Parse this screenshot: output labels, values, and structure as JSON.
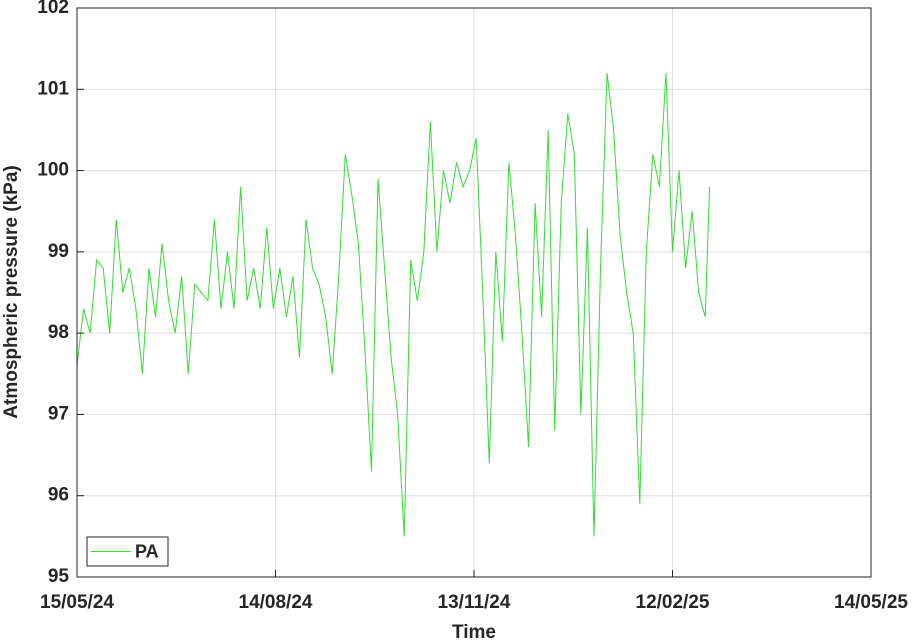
{
  "chart_data": {
    "type": "line",
    "x_label": "Time",
    "y_label": "Atmospheric pressure (kPa)",
    "x": [
      "15/05/24",
      "18/05/24",
      "21/05/24",
      "24/05/24",
      "27/05/24",
      "30/05/24",
      "02/06/24",
      "05/06/24",
      "08/06/24",
      "11/06/24",
      "14/06/24",
      "17/06/24",
      "20/06/24",
      "23/06/24",
      "26/06/24",
      "29/06/24",
      "02/07/24",
      "05/07/24",
      "08/07/24",
      "11/07/24",
      "14/07/24",
      "17/07/24",
      "20/07/24",
      "23/07/24",
      "26/07/24",
      "29/07/24",
      "01/08/24",
      "04/08/24",
      "07/08/24",
      "10/08/24",
      "13/08/24",
      "16/08/24",
      "19/08/24",
      "22/08/24",
      "25/08/24",
      "28/08/24",
      "31/08/24",
      "03/09/24",
      "06/09/24",
      "09/09/24",
      "12/09/24",
      "15/09/24",
      "18/09/24",
      "21/09/24",
      "24/09/24",
      "27/09/24",
      "30/09/24",
      "03/10/24",
      "06/10/24",
      "09/10/24",
      "12/10/24",
      "15/10/24",
      "18/10/24",
      "21/10/24",
      "24/10/24",
      "27/10/24",
      "30/10/24",
      "02/11/24",
      "05/11/24",
      "08/11/24",
      "11/11/24",
      "14/11/24",
      "17/11/24",
      "20/11/24",
      "23/11/24",
      "26/11/24",
      "29/11/24",
      "02/12/24",
      "05/12/24",
      "08/12/24",
      "11/12/24",
      "14/12/24",
      "17/12/24",
      "20/12/24",
      "23/12/24",
      "26/12/24",
      "29/12/24",
      "01/01/25",
      "04/01/25",
      "07/01/25",
      "10/01/25",
      "13/01/25",
      "16/01/25",
      "19/01/25",
      "22/01/25",
      "25/01/25",
      "28/01/25",
      "31/01/25",
      "03/02/25",
      "06/02/25",
      "09/02/25",
      "12/02/25",
      "15/02/25",
      "18/02/25",
      "21/02/25",
      "24/02/25",
      "27/02/25",
      "01/03/25"
    ],
    "series": [
      {
        "name": "PA",
        "color": "#33dd33",
        "values": [
          97.6,
          98.3,
          98.0,
          98.9,
          98.8,
          98.0,
          99.4,
          98.5,
          98.8,
          98.3,
          97.5,
          98.8,
          98.2,
          99.1,
          98.4,
          98.0,
          98.7,
          97.5,
          98.6,
          98.5,
          98.4,
          99.4,
          98.3,
          99.0,
          98.3,
          99.8,
          98.4,
          98.8,
          98.3,
          99.3,
          98.3,
          98.8,
          98.2,
          98.7,
          97.7,
          99.4,
          98.8,
          98.6,
          98.2,
          97.5,
          98.7,
          100.2,
          99.7,
          99.1,
          97.8,
          96.3,
          99.9,
          98.8,
          97.7,
          97.0,
          95.5,
          98.9,
          98.4,
          99.0,
          100.6,
          99.0,
          100.0,
          99.6,
          100.1,
          99.8,
          100.0,
          100.4,
          98.5,
          96.4,
          99.0,
          97.9,
          100.1,
          99.2,
          98.0,
          96.6,
          99.6,
          98.2,
          100.5,
          96.8,
          99.6,
          100.7,
          100.2,
          97.0,
          99.3,
          95.5,
          98.8,
          101.2,
          100.5,
          99.2,
          98.5,
          98.0,
          95.9,
          99.0,
          100.2,
          99.8,
          101.2,
          99.0,
          100.0,
          98.8,
          99.5,
          98.5,
          98.2,
          99.8
        ]
      }
    ],
    "xlim": [
      "15/05/24",
      "14/05/25"
    ],
    "xticks": [
      "15/05/24",
      "14/08/24",
      "13/11/24",
      "12/02/25",
      "14/05/25"
    ],
    "ylim": [
      95,
      102
    ],
    "yticks": [
      95,
      96,
      97,
      98,
      99,
      100,
      101,
      102
    ],
    "grid": true,
    "legend": "southwest"
  }
}
